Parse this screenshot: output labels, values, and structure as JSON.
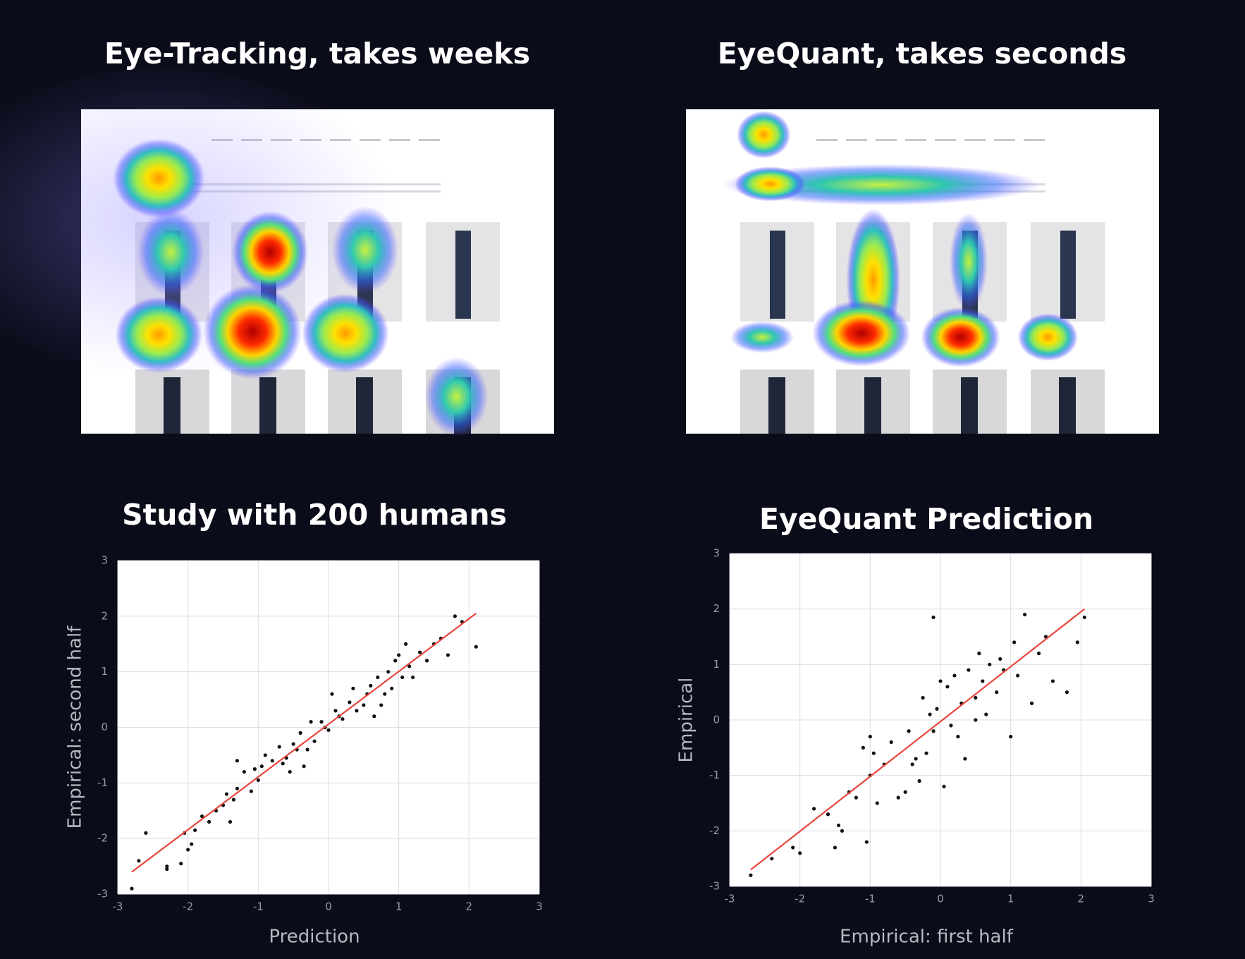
{
  "headings": [
    "Eye-Tracking, takes weeks",
    "EyeQuant, takes seconds"
  ],
  "chart_data": [
    {
      "type": "scatter",
      "title": "Study with 200 humans",
      "x_label": "Prediction",
      "y_label": "Empirical: second half",
      "xlim": [
        -3,
        3
      ],
      "ylim": [
        -3,
        3
      ],
      "xticks": [
        -3,
        -2,
        -1,
        0,
        1,
        2,
        3
      ],
      "yticks": [
        -3,
        -2,
        -1,
        0,
        1,
        2,
        3
      ],
      "grid": true,
      "point_color": "#111111",
      "x": [
        -2.8,
        -2.7,
        -2.6,
        -2.3,
        -2.3,
        -2.1,
        -2.05,
        -2.0,
        -1.95,
        -1.9,
        -1.8,
        -1.7,
        -1.6,
        -1.5,
        -1.45,
        -1.4,
        -1.35,
        -1.3,
        -1.2,
        -1.1,
        -1.05,
        -1.0,
        -0.95,
        -0.9,
        -0.8,
        -0.7,
        -0.65,
        -0.6,
        -0.55,
        -0.5,
        -0.45,
        -0.4,
        -0.35,
        -0.3,
        -0.25,
        -0.2,
        -0.1,
        -0.05,
        0.0,
        0.05,
        0.1,
        0.15,
        0.2,
        0.3,
        0.35,
        0.4,
        0.5,
        0.55,
        0.6,
        0.65,
        0.7,
        0.75,
        0.8,
        0.85,
        0.9,
        0.95,
        1.0,
        1.05,
        1.1,
        1.15,
        1.2,
        1.3,
        1.4,
        1.5,
        1.6,
        1.7,
        1.8,
        1.9,
        2.1,
        -1.3
      ],
      "y": [
        -2.9,
        -2.4,
        -1.9,
        -2.5,
        -2.55,
        -2.45,
        -1.9,
        -2.2,
        -2.1,
        -1.85,
        -1.6,
        -1.7,
        -1.5,
        -1.4,
        -1.2,
        -1.7,
        -1.3,
        -1.1,
        -0.8,
        -1.15,
        -0.75,
        -0.95,
        -0.7,
        -0.5,
        -0.6,
        -0.35,
        -0.65,
        -0.55,
        -0.8,
        -0.3,
        -0.4,
        -0.1,
        -0.7,
        -0.4,
        0.1,
        -0.25,
        0.1,
        0.0,
        -0.05,
        0.6,
        0.3,
        0.2,
        0.15,
        0.45,
        0.7,
        0.3,
        0.4,
        0.6,
        0.75,
        0.2,
        0.9,
        0.4,
        0.6,
        1.0,
        0.7,
        1.2,
        1.3,
        0.9,
        1.5,
        1.1,
        0.9,
        1.35,
        1.2,
        1.5,
        1.6,
        1.3,
        2.0,
        1.9,
        1.45,
        -0.6
      ],
      "fit_line": {
        "x": [
          -2.8,
          2.1
        ],
        "y": [
          -2.6,
          2.05
        ],
        "color": "#e8453c"
      }
    },
    {
      "type": "scatter",
      "title": "EyeQuant Prediction",
      "x_label": "Empirical: first half",
      "y_label": "Empirical",
      "xlim": [
        -3,
        3
      ],
      "ylim": [
        -3,
        3
      ],
      "xticks": [
        -3,
        -2,
        -1,
        0,
        1,
        2,
        3
      ],
      "yticks": [
        -3,
        -2,
        -1,
        0,
        1,
        2,
        3
      ],
      "grid": true,
      "point_color": "#111111",
      "x": [
        -2.7,
        -2.4,
        -2.1,
        -2.0,
        -1.8,
        -1.6,
        -1.5,
        -1.45,
        -1.4,
        -1.3,
        -1.2,
        -1.1,
        -1.05,
        -1.0,
        -0.95,
        -0.9,
        -0.8,
        -0.7,
        -0.6,
        -0.5,
        -0.45,
        -0.4,
        -0.35,
        -0.3,
        -0.25,
        -0.2,
        -0.15,
        -0.1,
        -0.05,
        0.0,
        0.05,
        0.1,
        0.15,
        0.2,
        0.25,
        0.3,
        0.35,
        0.4,
        0.5,
        0.55,
        0.6,
        0.65,
        0.7,
        0.8,
        0.85,
        0.9,
        1.0,
        1.05,
        1.1,
        1.2,
        1.3,
        1.4,
        1.5,
        1.6,
        1.8,
        1.95,
        2.05,
        -0.1,
        -1.0,
        0.5
      ],
      "y": [
        -2.8,
        -2.5,
        -2.3,
        -2.4,
        -1.6,
        -1.7,
        -2.3,
        -1.9,
        -2.0,
        -1.3,
        -1.4,
        -0.5,
        -2.2,
        -1.0,
        -0.6,
        -1.5,
        -0.8,
        -0.4,
        -1.4,
        -1.3,
        -0.2,
        -0.8,
        -0.7,
        -1.1,
        0.4,
        -0.6,
        0.1,
        1.85,
        0.2,
        0.7,
        -1.2,
        0.6,
        -0.1,
        0.8,
        -0.3,
        0.3,
        -0.7,
        0.9,
        0.4,
        1.2,
        0.7,
        0.1,
        1.0,
        0.5,
        1.1,
        0.9,
        -0.3,
        1.4,
        0.8,
        1.9,
        0.3,
        1.2,
        1.5,
        0.7,
        0.5,
        1.4,
        1.85,
        -0.2,
        -0.3,
        0.0
      ],
      "fit_line": {
        "x": [
          -2.7,
          2.05
        ],
        "y": [
          -2.7,
          2.0
        ],
        "color": "#e8453c"
      }
    }
  ]
}
